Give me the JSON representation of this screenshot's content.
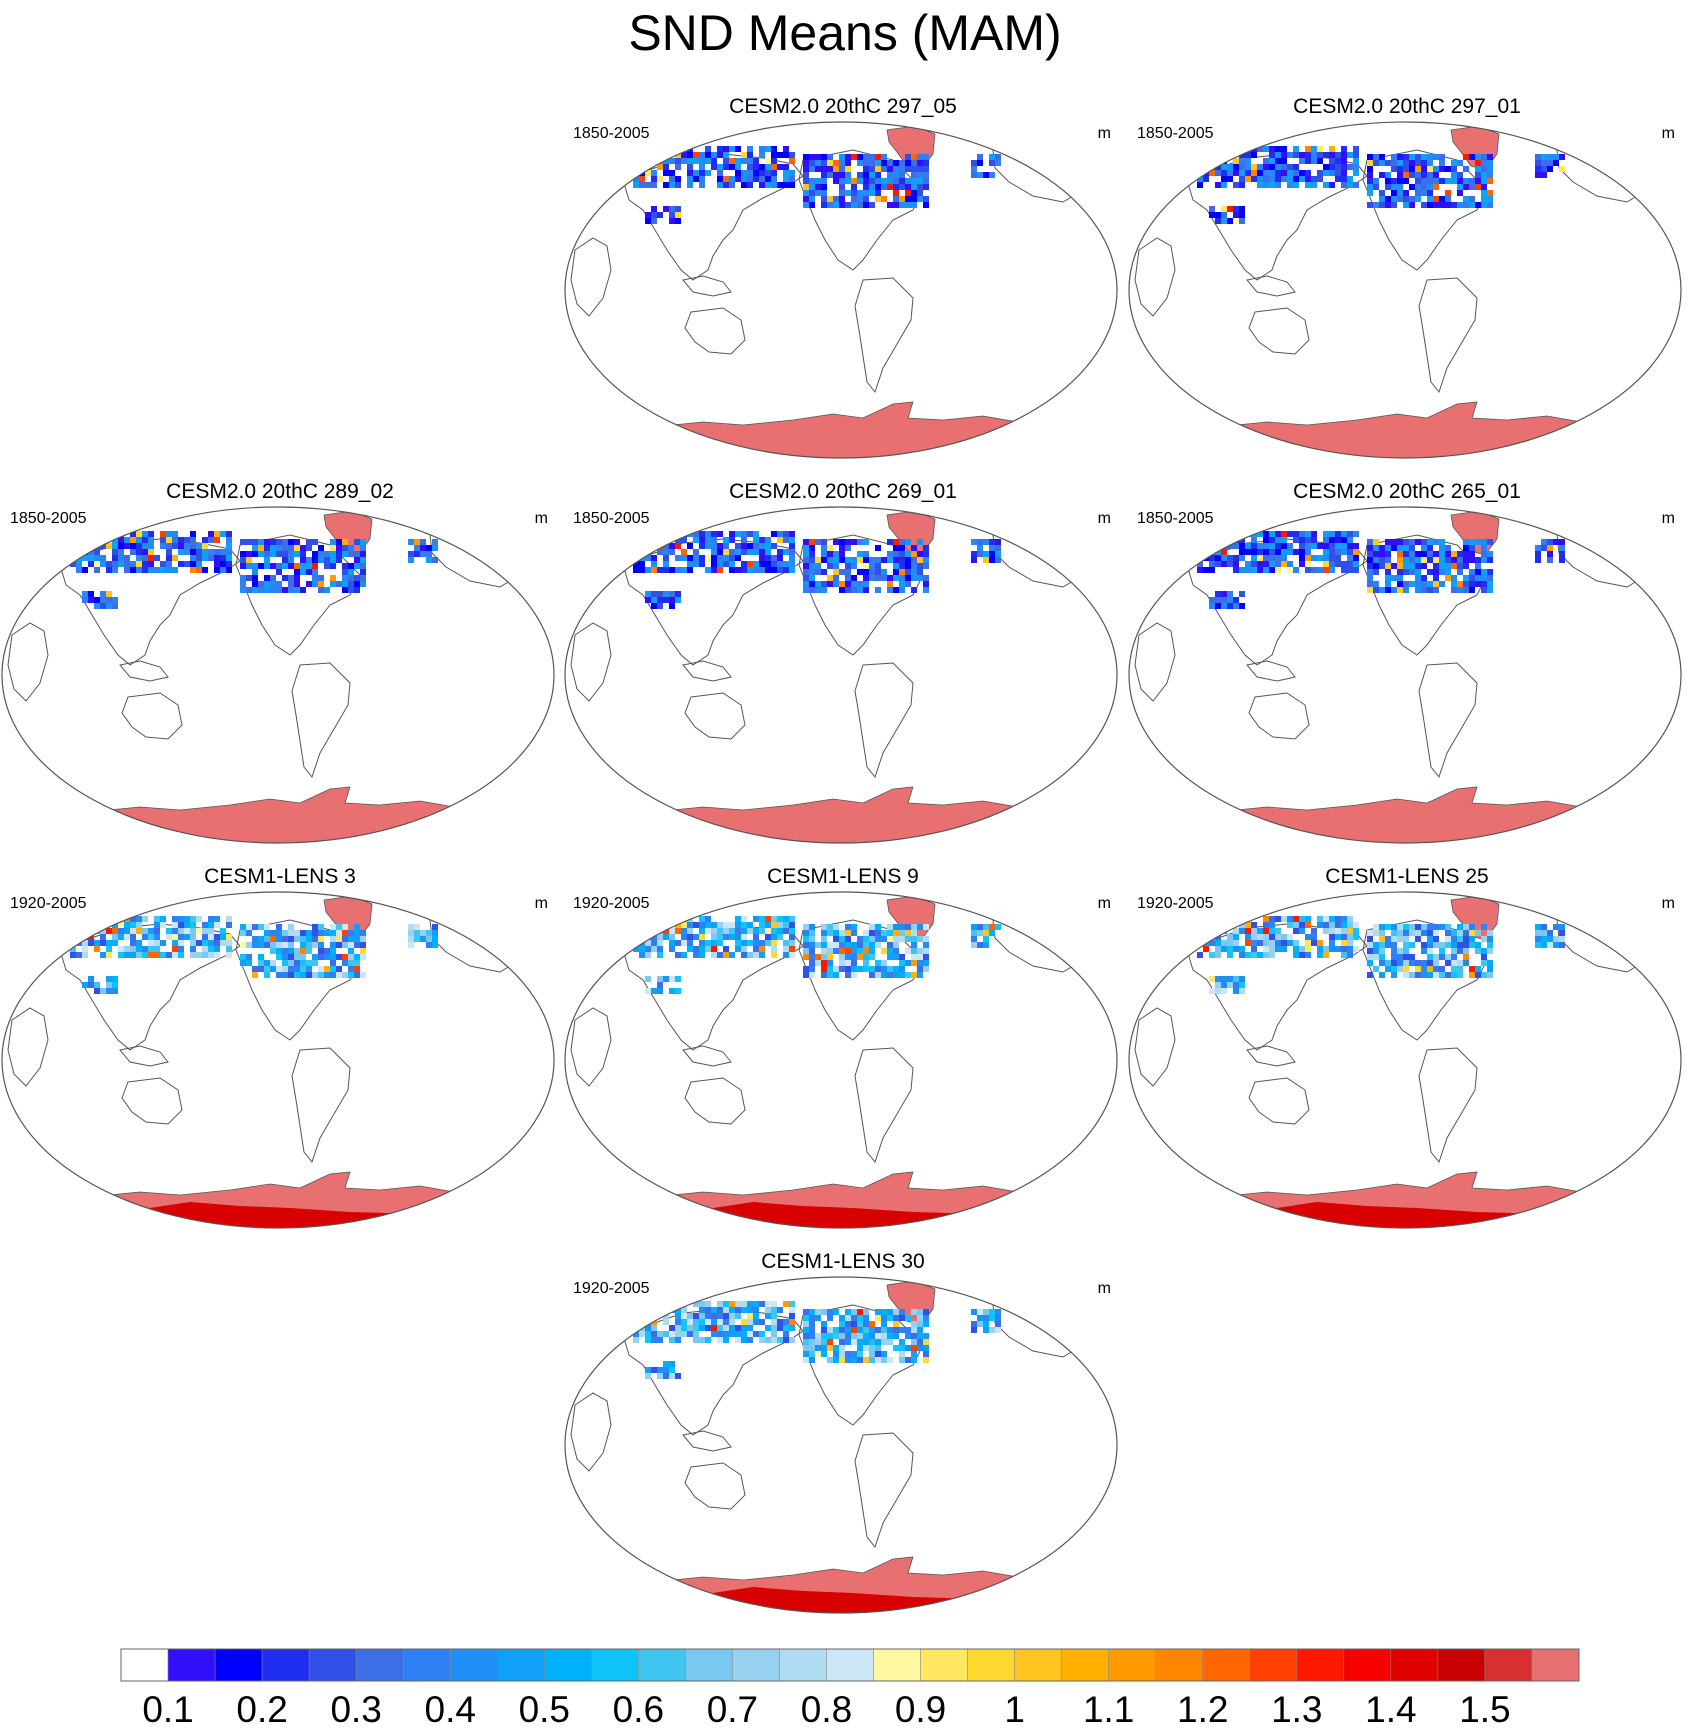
{
  "chart_data": {
    "type": "heatmap",
    "title": "SND Means (MAM)",
    "projection": "Robinson-like global map, Pacific-centered",
    "variable": "SND (snow depth)",
    "panels": [
      {
        "title": "CESM2.0 20thC 297_05",
        "period": "1850-2005",
        "units": "m",
        "grid_position": "row1-col2"
      },
      {
        "title": "CESM2.0 20thC 297_01",
        "period": "1850-2005",
        "units": "m",
        "grid_position": "row1-col3"
      },
      {
        "title": "CESM2.0 20thC 289_02",
        "period": "1850-2005",
        "units": "m",
        "grid_position": "row2-col1"
      },
      {
        "title": "CESM2.0 20thC 269_01",
        "period": "1850-2005",
        "units": "m",
        "grid_position": "row2-col2"
      },
      {
        "title": "CESM2.0 20thC 265_01",
        "period": "1850-2005",
        "units": "m",
        "grid_position": "row2-col3"
      },
      {
        "title": "CESM1-LENS 3",
        "period": "1920-2005",
        "units": "m",
        "grid_position": "row3-col1"
      },
      {
        "title": "CESM1-LENS 9",
        "period": "1920-2005",
        "units": "m",
        "grid_position": "row3-col2"
      },
      {
        "title": "CESM1-LENS 25",
        "period": "1920-2005",
        "units": "m",
        "grid_position": "row3-col3"
      },
      {
        "title": "CESM1-LENS 30",
        "period": "1920-2005",
        "units": "m",
        "grid_position": "row4-col2"
      }
    ],
    "colorbar": {
      "levels": [
        0.1,
        0.15,
        0.2,
        0.25,
        0.3,
        0.35,
        0.4,
        0.45,
        0.5,
        0.55,
        0.6,
        0.65,
        0.7,
        0.75,
        0.8,
        0.85,
        0.9,
        0.95,
        1.0,
        1.05,
        1.1,
        1.15,
        1.2,
        1.25,
        1.3,
        1.35,
        1.4,
        1.45,
        1.5
      ],
      "tick_labels": [
        "0.1",
        "0.2",
        "0.3",
        "0.4",
        "0.5",
        "0.6",
        "0.7",
        "0.8",
        "0.9",
        "1",
        "1.1",
        "1.2",
        "1.3",
        "1.4",
        "1.5"
      ],
      "colors": [
        "#ffffff",
        "#3010f8",
        "#0000ff",
        "#1f2ef0",
        "#3050e8",
        "#3c6ee8",
        "#2f7ff5",
        "#1f8ff8",
        "#10a0f8",
        "#00b0f8",
        "#10c4fa",
        "#40c4f0",
        "#78c8f0",
        "#98d0f0",
        "#b0dcf2",
        "#cce6f6",
        "#fff8a0",
        "#ffe860",
        "#ffd830",
        "#ffc420",
        "#ffb000",
        "#ff9a00",
        "#ff8400",
        "#ff6600",
        "#ff4000",
        "#ff1800",
        "#f80000",
        "#e00000",
        "#c80000",
        "#d83030",
        "#e87070"
      ]
    }
  }
}
